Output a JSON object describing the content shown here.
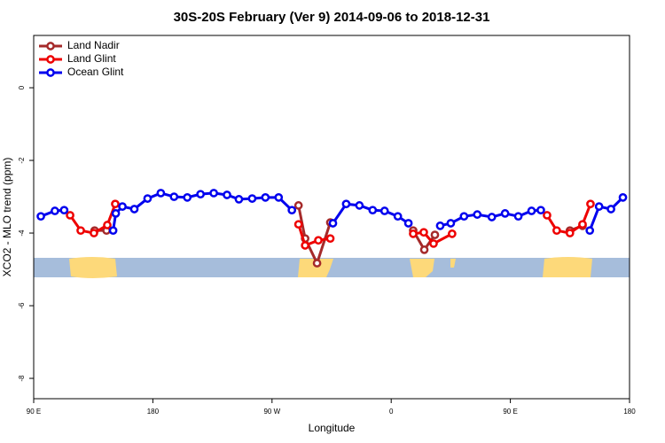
{
  "chart_data": {
    "type": "line",
    "title": "30S-20S February (Ver 9)   2014-09-06 to 2018-12-31",
    "xlabel": "Longitude",
    "ylabel": "XCO2 - MLO trend (ppm)",
    "xlim": [
      90,
      540
    ],
    "ylim": [
      -8.56,
      1.44
    ],
    "xticks": [
      {
        "value": 90,
        "label": "90 E"
      },
      180,
      {
        "value": 270,
        "label": "90 W"
      },
      {
        "value": 360,
        "label": "0"
      },
      {
        "value": 450,
        "label": "90 E"
      },
      {
        "value": 540,
        "label": "180"
      }
    ],
    "yticks": [
      0,
      -2,
      -4,
      -6,
      -8
    ],
    "grid": false,
    "legend": "upper left",
    "series": [
      {
        "name": "Land Nadir",
        "color": "#a52a2a",
        "x": [
          136,
          145,
          null,
          290,
          295,
          304,
          314,
          null,
          376.6,
          385,
          393,
          null,
          495,
          504.5
        ],
        "values": [
          -3.93,
          -3.93,
          null,
          -3.24,
          -4.15,
          -4.83,
          -3.71,
          null,
          -3.93,
          -4.46,
          -4.05,
          null,
          -3.93,
          -3.8
        ]
      },
      {
        "name": "Land Glint",
        "color": "#ee0000",
        "x": [
          117.5,
          125.5,
          135.5,
          145.6,
          151.6,
          null,
          290,
          295,
          305,
          314,
          null,
          376.6,
          384.6,
          392,
          406,
          null,
          477.7,
          485,
          495,
          504.5,
          510.5
        ],
        "values": [
          -3.51,
          -3.93,
          -4.0,
          -3.78,
          -3.2,
          null,
          -3.76,
          -4.34,
          -4.2,
          -4.15,
          null,
          -4.02,
          -3.98,
          -4.29,
          -4.02,
          null,
          -3.51,
          -3.93,
          -4.0,
          -3.76,
          -3.2
        ]
      },
      {
        "name": "Ocean Glint",
        "color": "#0000ee",
        "x": [
          95.4,
          106,
          113,
          null,
          150,
          152,
          157,
          166,
          176,
          186,
          196,
          206,
          216,
          226,
          236,
          245,
          255,
          265,
          275,
          285,
          null,
          316,
          326,
          336,
          346,
          355,
          365,
          373,
          null,
          397,
          405,
          415,
          425,
          436,
          446,
          456,
          466,
          473,
          null,
          510,
          517,
          526,
          535
        ],
        "values": [
          -3.54,
          -3.39,
          -3.37,
          null,
          -3.93,
          -3.46,
          -3.27,
          -3.34,
          -3.05,
          -2.9,
          -3.0,
          -3.02,
          -2.93,
          -2.9,
          -2.95,
          -3.07,
          -3.05,
          -3.02,
          -3.02,
          -3.37,
          null,
          -3.73,
          -3.2,
          -3.24,
          -3.37,
          -3.39,
          -3.54,
          -3.73,
          null,
          -3.8,
          -3.73,
          -3.54,
          -3.49,
          -3.56,
          -3.46,
          -3.54,
          -3.39,
          -3.37,
          null,
          -3.93,
          -3.27,
          -3.34,
          -3.02
        ]
      }
    ]
  }
}
